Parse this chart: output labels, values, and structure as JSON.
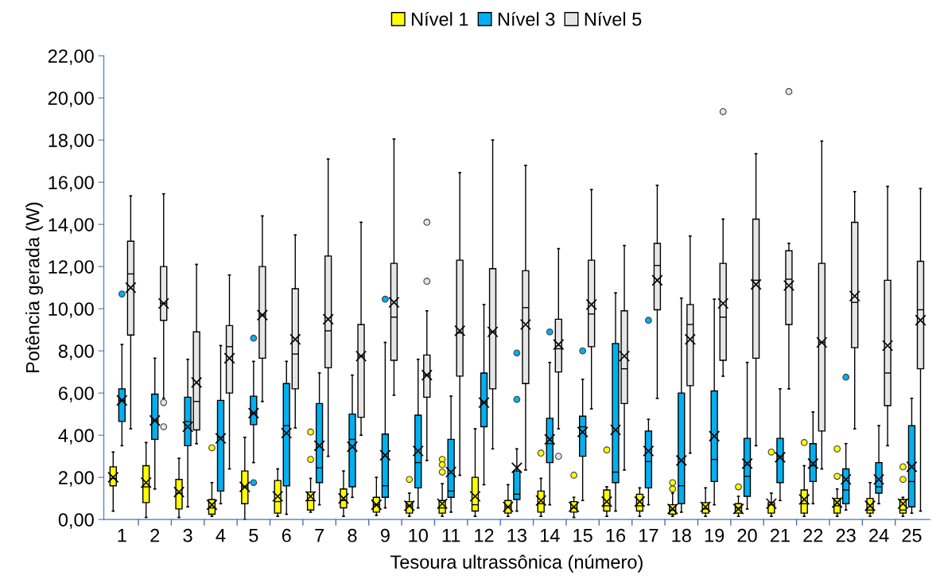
{
  "chart_data": {
    "type": "box",
    "xlabel": "Tesoura ultrassônica (número)",
    "ylabel": "Potência gerada (W)",
    "legend": "top",
    "grid": false,
    "categories": [
      "1",
      "2",
      "3",
      "4",
      "5",
      "6",
      "7",
      "8",
      "9",
      "10",
      "11",
      "12",
      "13",
      "14",
      "15",
      "16",
      "17",
      "18",
      "19",
      "20",
      "21",
      "22",
      "23",
      "24",
      "25"
    ],
    "ylim": [
      0,
      22
    ],
    "yticks": [
      {
        "value": 0,
        "label": "0,00"
      },
      {
        "value": 2,
        "label": "2,00"
      },
      {
        "value": 4,
        "label": "4,00"
      },
      {
        "value": 6,
        "label": "6,00"
      },
      {
        "value": 8,
        "label": "8,00"
      },
      {
        "value": 10,
        "label": "10,00"
      },
      {
        "value": 12,
        "label": "12,00"
      },
      {
        "value": 14,
        "label": "14,00"
      },
      {
        "value": 16,
        "label": "16,00"
      },
      {
        "value": 18,
        "label": "18,00"
      },
      {
        "value": 20,
        "label": "20,00"
      },
      {
        "value": 22,
        "label": "22,00"
      }
    ],
    "series": [
      {
        "name": "Nível 1",
        "color": "#ffff00",
        "boxes": [
          {
            "low": 0.4,
            "q1": 1.6,
            "median": 1.95,
            "q3": 2.5,
            "high": 3.2,
            "mean": 2.0
          },
          {
            "low": 0.1,
            "q1": 0.8,
            "median": 1.55,
            "q3": 2.55,
            "high": 3.65,
            "mean": 1.75
          },
          {
            "low": 0.1,
            "q1": 0.5,
            "median": 1.25,
            "q3": 1.9,
            "high": 2.9,
            "mean": 1.3
          },
          {
            "low": 0.15,
            "q1": 0.25,
            "median": 0.55,
            "q3": 0.95,
            "high": 1.75,
            "mean": 0.7,
            "outliers": [
              3.4
            ]
          },
          {
            "low": 0.0,
            "q1": 0.75,
            "median": 1.55,
            "q3": 2.3,
            "high": 3.9,
            "mean": 1.55
          },
          {
            "low": 0.15,
            "q1": 0.3,
            "median": 0.85,
            "q3": 1.85,
            "high": 2.4,
            "mean": 1.1
          },
          {
            "low": 0.35,
            "q1": 0.45,
            "median": 0.9,
            "q3": 1.3,
            "high": 1.95,
            "mean": 1.1,
            "outliers": [
              4.15,
              2.85
            ]
          },
          {
            "low": 0.15,
            "q1": 0.55,
            "median": 0.9,
            "q3": 1.45,
            "high": 2.3,
            "mean": 1.0
          },
          {
            "low": 0.2,
            "q1": 0.35,
            "median": 0.7,
            "q3": 1.05,
            "high": 2.0,
            "mean": 0.7
          },
          {
            "low": 0.15,
            "q1": 0.3,
            "median": 0.65,
            "q3": 0.85,
            "high": 1.25,
            "mean": 0.65,
            "outliers": [
              1.9
            ]
          },
          {
            "low": 0.15,
            "q1": 0.3,
            "median": 0.55,
            "q3": 0.9,
            "high": 1.7,
            "mean": 0.75,
            "outliers": [
              2.85,
              2.6,
              2.25
            ]
          },
          {
            "low": 0.15,
            "q1": 0.4,
            "median": 0.7,
            "q3": 2.0,
            "high": 4.3,
            "mean": 1.1
          },
          {
            "low": 0.15,
            "q1": 0.3,
            "median": 0.6,
            "q3": 0.9,
            "high": 1.65,
            "mean": 0.6
          },
          {
            "low": 0.15,
            "q1": 0.35,
            "median": 0.75,
            "q3": 1.35,
            "high": 1.95,
            "mean": 0.9,
            "outliers": [
              3.15
            ]
          },
          {
            "low": 0.1,
            "q1": 0.35,
            "median": 0.55,
            "q3": 0.85,
            "high": 1.05,
            "mean": 0.6,
            "outliers": [
              2.1
            ]
          },
          {
            "low": 0.15,
            "q1": 0.4,
            "median": 0.65,
            "q3": 1.4,
            "high": 1.55,
            "mean": 0.85,
            "outliers": [
              3.3
            ]
          },
          {
            "low": 0.15,
            "q1": 0.4,
            "median": 0.65,
            "q3": 1.2,
            "high": 1.5,
            "mean": 0.85
          },
          {
            "low": 0.15,
            "q1": 0.25,
            "median": 0.45,
            "q3": 0.7,
            "high": 1.25,
            "mean": 0.5,
            "outliers": [
              1.75,
              1.45
            ]
          },
          {
            "low": 0.15,
            "q1": 0.3,
            "median": 0.5,
            "q3": 0.8,
            "high": 1.5,
            "mean": 0.6
          },
          {
            "low": 0.15,
            "q1": 0.3,
            "median": 0.55,
            "q3": 0.75,
            "high": 1.1,
            "mean": 0.5,
            "outliers": [
              1.55
            ]
          },
          {
            "low": 0.15,
            "q1": 0.3,
            "median": 0.7,
            "q3": 0.8,
            "high": 1.25,
            "mean": 0.75,
            "outliers": [
              3.2
            ]
          },
          {
            "low": 0.15,
            "q1": 0.3,
            "median": 0.75,
            "q3": 1.4,
            "high": 2.55,
            "mean": 0.95,
            "outliers": [
              3.65
            ]
          },
          {
            "low": 0.15,
            "q1": 0.3,
            "median": 0.65,
            "q3": 1.0,
            "high": 1.45,
            "mean": 0.8,
            "outliers": [
              3.35,
              2.05
            ]
          },
          {
            "low": 0.15,
            "q1": 0.3,
            "median": 0.45,
            "q3": 1.0,
            "high": 1.75,
            "mean": 0.65
          },
          {
            "low": 0.15,
            "q1": 0.3,
            "median": 0.45,
            "q3": 0.95,
            "high": 1.05,
            "mean": 0.75,
            "outliers": [
              2.5,
              1.9
            ]
          }
        ]
      },
      {
        "name": "Nível 3",
        "color": "#00b0f0",
        "boxes": [
          {
            "low": 3.5,
            "q1": 4.65,
            "median": 5.65,
            "q3": 6.2,
            "high": 8.3,
            "mean": 5.65,
            "outliers": [
              10.7
            ]
          },
          {
            "low": 1.45,
            "q1": 3.8,
            "median": 4.7,
            "q3": 5.95,
            "high": 7.65,
            "mean": 4.7
          },
          {
            "low": 0.6,
            "q1": 3.5,
            "median": 4.65,
            "q3": 5.8,
            "high": 7.6,
            "mean": 4.4
          },
          {
            "low": 0.75,
            "q1": 1.35,
            "median": 3.9,
            "q3": 5.65,
            "high": 8.25,
            "mean": 3.85
          },
          {
            "low": 2.7,
            "q1": 4.5,
            "median": 5.05,
            "q3": 5.85,
            "high": 7.5,
            "mean": 5.05,
            "outliers": [
              8.6,
              1.75
            ]
          },
          {
            "low": 0.25,
            "q1": 1.6,
            "median": 4.45,
            "q3": 6.45,
            "high": 7.5,
            "mean": 4.1
          },
          {
            "low": 0.7,
            "q1": 1.75,
            "median": 2.45,
            "q3": 5.5,
            "high": 6.95,
            "mean": 3.5
          },
          {
            "low": 1.05,
            "q1": 1.55,
            "median": 3.8,
            "q3": 5.0,
            "high": 6.85,
            "mean": 3.45
          },
          {
            "low": 0.55,
            "q1": 1.05,
            "median": 1.6,
            "q3": 4.05,
            "high": 8.4,
            "mean": 3.05,
            "outliers": [
              10.45
            ]
          },
          {
            "low": 0.55,
            "q1": 1.5,
            "median": 2.7,
            "q3": 4.95,
            "high": 7.6,
            "mean": 3.25
          },
          {
            "low": 0.35,
            "q1": 1.05,
            "median": 1.35,
            "q3": 3.8,
            "high": 5.85,
            "mean": 2.25
          },
          {
            "low": 1.65,
            "q1": 4.4,
            "median": 5.55,
            "q3": 6.95,
            "high": 10.2,
            "mean": 5.55
          },
          {
            "low": 0.4,
            "q1": 0.95,
            "median": 1.2,
            "q3": 2.3,
            "high": 3.35,
            "mean": 2.45,
            "outliers": [
              7.9,
              5.7
            ]
          },
          {
            "low": 0.7,
            "q1": 2.7,
            "median": 3.6,
            "q3": 4.8,
            "high": 7.45,
            "mean": 3.8,
            "outliers": [
              8.9
            ]
          },
          {
            "low": 0.9,
            "q1": 3.0,
            "median": 4.4,
            "q3": 4.9,
            "high": 6.65,
            "mean": 4.15,
            "outliers": [
              8.0
            ]
          },
          {
            "low": 0.4,
            "q1": 1.75,
            "median": 2.25,
            "q3": 8.35,
            "high": 10.75,
            "mean": 4.25
          },
          {
            "low": 0.7,
            "q1": 1.5,
            "median": 2.75,
            "q3": 4.2,
            "high": 4.75,
            "mean": 3.25,
            "outliers": [
              9.45
            ]
          },
          {
            "low": 0.35,
            "q1": 0.75,
            "median": 1.6,
            "q3": 6.0,
            "high": 10.5,
            "mean": 2.8
          },
          {
            "low": 0.7,
            "q1": 1.8,
            "median": 2.85,
            "q3": 6.1,
            "high": 10.45,
            "mean": 3.95
          },
          {
            "low": 0.5,
            "q1": 1.1,
            "median": 2.05,
            "q3": 3.85,
            "high": 7.45,
            "mean": 2.65
          },
          {
            "low": 0.9,
            "q1": 1.75,
            "median": 3.0,
            "q3": 3.85,
            "high": 6.2,
            "mean": 2.95
          },
          {
            "low": 0.75,
            "q1": 1.8,
            "median": 2.55,
            "q3": 3.6,
            "high": 5.1,
            "mean": 2.65
          },
          {
            "low": 0.45,
            "q1": 0.75,
            "median": 1.4,
            "q3": 2.4,
            "high": 3.6,
            "mean": 1.9,
            "outliers": [
              6.75
            ]
          },
          {
            "low": 0.75,
            "q1": 1.25,
            "median": 1.55,
            "q3": 2.7,
            "high": 4.45,
            "mean": 1.9
          },
          {
            "low": 0.3,
            "q1": 0.6,
            "median": 1.8,
            "q3": 4.45,
            "high": 5.75,
            "mean": 2.5
          }
        ]
      },
      {
        "name": "Nível 5",
        "color": "#e6e6e6",
        "boxes": [
          {
            "low": 4.3,
            "q1": 8.75,
            "median": 11.65,
            "q3": 13.2,
            "high": 15.35,
            "mean": 11.0
          },
          {
            "low": 5.75,
            "q1": 9.45,
            "median": 10.25,
            "q3": 12.0,
            "high": 15.45,
            "mean": 10.25,
            "outliers": [
              5.55,
              4.4
            ]
          },
          {
            "low": 3.6,
            "q1": 4.25,
            "median": 5.6,
            "q3": 8.9,
            "high": 12.1,
            "mean": 6.5
          },
          {
            "low": 2.4,
            "q1": 6.0,
            "median": 8.2,
            "q3": 9.2,
            "high": 11.6,
            "mean": 7.65
          },
          {
            "low": 5.6,
            "q1": 7.65,
            "median": 9.7,
            "q3": 12.0,
            "high": 14.4,
            "mean": 9.7
          },
          {
            "low": 4.35,
            "q1": 6.2,
            "median": 7.85,
            "q3": 10.95,
            "high": 13.5,
            "mean": 8.55
          },
          {
            "low": 3.0,
            "q1": 7.2,
            "median": 8.95,
            "q3": 12.5,
            "high": 17.1,
            "mean": 9.5
          },
          {
            "low": 4.0,
            "q1": 4.85,
            "median": 7.75,
            "q3": 9.25,
            "high": 14.1,
            "mean": 7.75
          },
          {
            "low": 5.9,
            "q1": 7.55,
            "median": 9.6,
            "q3": 12.15,
            "high": 18.05,
            "mean": 10.3
          },
          {
            "low": 2.8,
            "q1": 5.8,
            "median": 6.85,
            "q3": 7.8,
            "high": 9.9,
            "mean": 6.85,
            "outliers": [
              14.1,
              11.3
            ]
          },
          {
            "low": 2.1,
            "q1": 6.8,
            "median": 8.85,
            "q3": 12.3,
            "high": 16.45,
            "mean": 8.95
          },
          {
            "low": 3.35,
            "q1": 6.2,
            "median": 8.9,
            "q3": 11.9,
            "high": 18.0,
            "mean": 8.9
          },
          {
            "low": 2.35,
            "q1": 6.45,
            "median": 10.05,
            "q3": 11.8,
            "high": 16.8,
            "mean": 9.25
          },
          {
            "low": 4.3,
            "q1": 7.0,
            "median": 8.1,
            "q3": 9.5,
            "high": 12.85,
            "mean": 8.3,
            "outliers": [
              3.0
            ]
          },
          {
            "low": 5.25,
            "q1": 8.2,
            "median": 9.75,
            "q3": 12.3,
            "high": 15.65,
            "mean": 10.2
          },
          {
            "low": 2.35,
            "q1": 5.5,
            "median": 7.15,
            "q3": 9.9,
            "high": 13.0,
            "mean": 7.75
          },
          {
            "low": 5.75,
            "q1": 9.95,
            "median": 12.05,
            "q3": 13.1,
            "high": 15.85,
            "mean": 11.35
          },
          {
            "low": 3.15,
            "q1": 6.35,
            "median": 9.25,
            "q3": 10.2,
            "high": 13.45,
            "mean": 8.55
          },
          {
            "low": 6.8,
            "q1": 7.55,
            "median": 9.6,
            "q3": 12.15,
            "high": 14.25,
            "mean": 10.25,
            "outliers": [
              19.35
            ]
          },
          {
            "low": 3.5,
            "q1": 7.65,
            "median": 11.35,
            "q3": 14.25,
            "high": 17.35,
            "mean": 11.15
          },
          {
            "low": 6.2,
            "q1": 9.25,
            "median": 11.4,
            "q3": 12.75,
            "high": 13.1,
            "mean": 11.1,
            "outliers": [
              20.3
            ]
          },
          {
            "low": 2.4,
            "q1": 4.2,
            "median": 8.4,
            "q3": 12.15,
            "high": 17.95,
            "mean": 8.4
          },
          {
            "low": 4.3,
            "q1": 8.15,
            "median": 10.3,
            "q3": 14.1,
            "high": 15.55,
            "mean": 10.6
          },
          {
            "low": 3.5,
            "q1": 5.4,
            "median": 6.95,
            "q3": 11.35,
            "high": 15.8,
            "mean": 8.25
          },
          {
            "low": 0.4,
            "q1": 7.15,
            "median": 9.95,
            "q3": 12.25,
            "high": 15.7,
            "mean": 9.45
          }
        ]
      }
    ]
  }
}
